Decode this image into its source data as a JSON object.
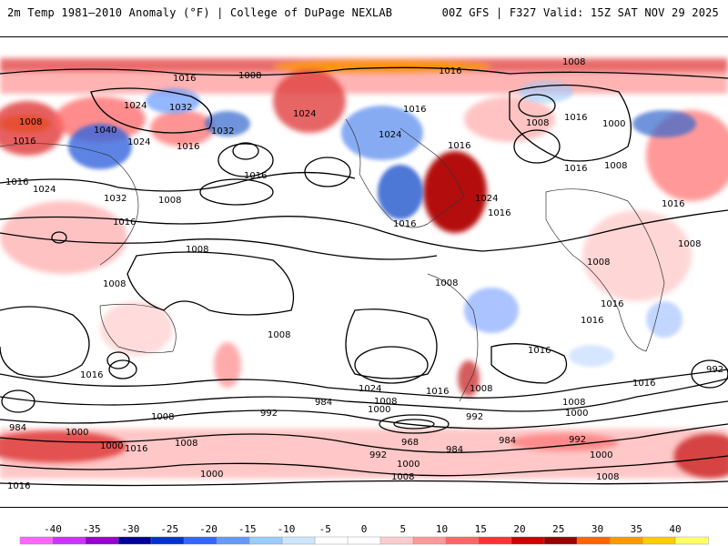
{
  "header": {
    "left": "2m Temp 1981–2010 Anomaly (°F) | College of DuPage NEXLAB",
    "right": "00Z GFS | F327 Valid: 15Z SAT NOV 29 2025"
  },
  "colorbar": {
    "ticks": [
      "-40",
      "-35",
      "-30",
      "-25",
      "-20",
      "-15",
      "-10",
      "-5",
      "0",
      "5",
      "10",
      "15",
      "20",
      "25",
      "30",
      "35",
      "40"
    ],
    "colors": [
      "#ff66ff",
      "#cc33ff",
      "#9900cc",
      "#000099",
      "#0033cc",
      "#3366ff",
      "#6699ff",
      "#99ccff",
      "#cce6ff",
      "#ffffff",
      "#ffffff",
      "#ffcccc",
      "#ff9999",
      "#ff6666",
      "#ff3333",
      "#cc0000",
      "#990000",
      "#ff6600",
      "#ff9900",
      "#ffcc00",
      "#ffff66"
    ]
  },
  "isobar_labels": [
    {
      "text": "1008"
    },
    {
      "text": "1016"
    },
    {
      "text": "1008"
    },
    {
      "text": "1024"
    },
    {
      "text": "1032"
    },
    {
      "text": "1016"
    },
    {
      "text": "1040"
    },
    {
      "text": "1024"
    },
    {
      "text": "1032"
    },
    {
      "text": "1016"
    },
    {
      "text": "1024"
    },
    {
      "text": "1016"
    },
    {
      "text": "1024"
    },
    {
      "text": "1016"
    },
    {
      "text": "1016"
    },
    {
      "text": "1032"
    },
    {
      "text": "1016"
    },
    {
      "text": "1008"
    },
    {
      "text": "1008"
    },
    {
      "text": "1016"
    },
    {
      "text": "1024"
    },
    {
      "text": "1016"
    },
    {
      "text": "1008"
    },
    {
      "text": "1000"
    },
    {
      "text": "1008"
    },
    {
      "text": "1016"
    },
    {
      "text": "1008"
    },
    {
      "text": "1008"
    },
    {
      "text": "1008"
    },
    {
      "text": "1016"
    },
    {
      "text": "1008"
    },
    {
      "text": "1008"
    },
    {
      "text": "1016"
    },
    {
      "text": "1016"
    },
    {
      "text": "1024"
    },
    {
      "text": "1016"
    },
    {
      "text": "1016"
    },
    {
      "text": "1016"
    },
    {
      "text": "1016"
    },
    {
      "text": "1008"
    },
    {
      "text": "1008"
    },
    {
      "text": "1000"
    },
    {
      "text": "984"
    },
    {
      "text": "992"
    },
    {
      "text": "1008"
    },
    {
      "text": "1000"
    },
    {
      "text": "992"
    },
    {
      "text": "1008"
    },
    {
      "text": "1000"
    },
    {
      "text": "984"
    },
    {
      "text": "1000"
    },
    {
      "text": "1024"
    },
    {
      "text": "1016"
    },
    {
      "text": "1008"
    },
    {
      "text": "968"
    },
    {
      "text": "984"
    },
    {
      "text": "984"
    },
    {
      "text": "992"
    },
    {
      "text": "1000"
    },
    {
      "text": "1000"
    },
    {
      "text": "1008"
    },
    {
      "text": "1008"
    },
    {
      "text": "1000"
    },
    {
      "text": "1016"
    },
    {
      "text": "992"
    },
    {
      "text": "1008"
    }
  ]
}
